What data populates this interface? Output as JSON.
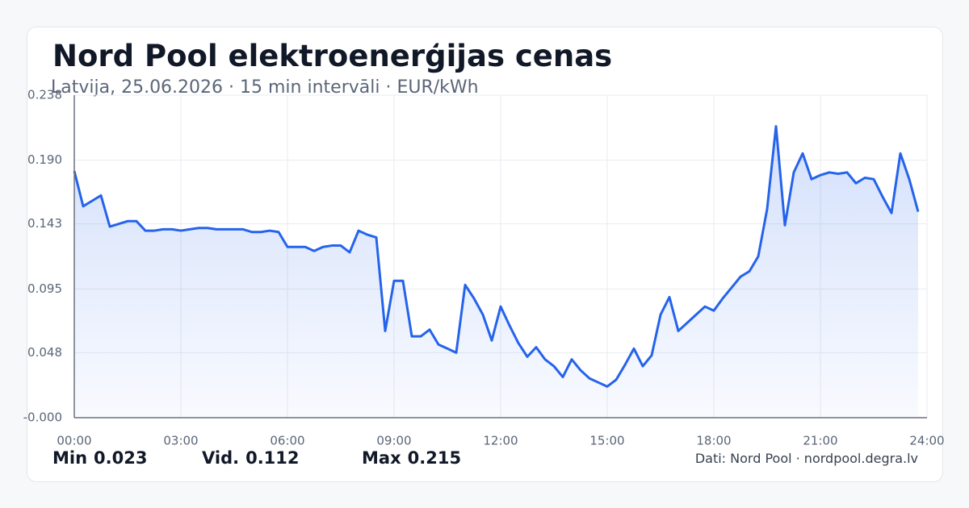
{
  "chart_data": {
    "type": "line",
    "title": "Nord Pool elektroenerģijas cenas",
    "subtitle": "Latvija, 25.06.2026 · 15 min intervāli · EUR/kWh",
    "x": [
      0,
      0.25,
      0.5,
      0.75,
      1,
      1.25,
      1.5,
      1.75,
      2,
      2.25,
      2.5,
      2.75,
      3,
      3.25,
      3.5,
      3.75,
      4,
      4.25,
      4.5,
      4.75,
      5,
      5.25,
      5.5,
      5.75,
      6,
      6.25,
      6.5,
      6.75,
      7,
      7.25,
      7.5,
      7.75,
      8,
      8.25,
      8.5,
      8.75,
      9,
      9.25,
      9.5,
      9.75,
      10,
      10.25,
      10.5,
      10.75,
      11,
      11.25,
      11.5,
      11.75,
      12,
      12.25,
      12.5,
      12.75,
      13,
      13.25,
      13.5,
      13.75,
      14,
      14.25,
      14.5,
      14.75,
      15,
      15.25,
      15.5,
      15.75,
      16,
      16.25,
      16.5,
      16.75,
      17,
      17.25,
      17.5,
      17.75,
      18,
      18.25,
      18.5,
      18.75,
      19,
      19.25,
      19.5,
      19.75,
      20,
      20.25,
      20.5,
      20.75,
      21,
      21.25,
      21.5,
      21.75,
      22,
      22.25,
      22.5,
      22.75,
      23,
      23.25,
      23.5,
      23.75
    ],
    "series": [
      {
        "name": "EUR/kWh",
        "color": "#2563eb",
        "values": [
          0.182,
          0.156,
          0.16,
          0.164,
          0.141,
          0.143,
          0.145,
          0.145,
          0.138,
          0.138,
          0.139,
          0.139,
          0.138,
          0.139,
          0.14,
          0.14,
          0.139,
          0.139,
          0.139,
          0.139,
          0.137,
          0.137,
          0.138,
          0.137,
          0.126,
          0.126,
          0.126,
          0.123,
          0.126,
          0.127,
          0.127,
          0.122,
          0.138,
          0.135,
          0.133,
          0.064,
          0.101,
          0.101,
          0.06,
          0.06,
          0.065,
          0.054,
          0.051,
          0.048,
          0.098,
          0.088,
          0.076,
          0.057,
          0.082,
          0.068,
          0.055,
          0.045,
          0.052,
          0.043,
          0.038,
          0.03,
          0.043,
          0.035,
          0.029,
          0.026,
          0.023,
          0.028,
          0.039,
          0.051,
          0.038,
          0.046,
          0.076,
          0.089,
          0.064,
          0.07,
          0.076,
          0.082,
          0.079,
          0.088,
          0.096,
          0.104,
          0.108,
          0.119,
          0.154,
          0.215,
          0.142,
          0.181,
          0.195,
          0.176,
          0.179,
          0.181,
          0.18,
          0.181,
          0.173,
          0.177,
          0.176,
          0.163,
          0.151,
          0.195,
          0.176,
          0.152
        ]
      }
    ],
    "xlim": [
      0,
      24
    ],
    "xticks": [
      {
        "value": 0,
        "label": "00:00"
      },
      {
        "value": 3,
        "label": "03:00"
      },
      {
        "value": 6,
        "label": "06:00"
      },
      {
        "value": 9,
        "label": "09:00"
      },
      {
        "value": 12,
        "label": "12:00"
      },
      {
        "value": 15,
        "label": "15:00"
      },
      {
        "value": 18,
        "label": "18:00"
      },
      {
        "value": 21,
        "label": "21:00"
      },
      {
        "value": 24,
        "label": "24:00"
      }
    ],
    "ylim": [
      0,
      0.238
    ],
    "yticks": [
      {
        "value": 0,
        "label": "-0.000"
      },
      0.048,
      0.095,
      0.143,
      {
        "value": 0.19,
        "label": "0.190"
      },
      0.238
    ],
    "grid": true,
    "stats": [
      {
        "label": "Min",
        "value": 0.023
      },
      {
        "label": "Vid.",
        "value": 0.112
      },
      {
        "label": "Max",
        "value": 0.215
      }
    ],
    "source": "Dati: Nord Pool · nordpool.degra.lv"
  }
}
